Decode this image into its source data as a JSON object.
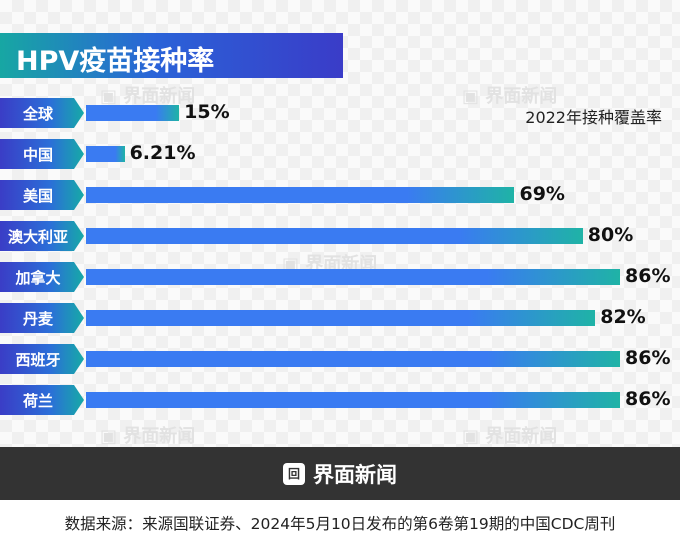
{
  "brand": "界面新闻",
  "logo_icon": "jiemian-logo-icon",
  "source": "数据来源：来源国联证券、2024年5月10日发布的第6卷第19期的中国CDC周刊",
  "chart_data": {
    "type": "bar",
    "orientation": "horizontal",
    "title": "HPV疫苗接种率",
    "subtitle": "2022年接种覆盖率",
    "categories": [
      "全球",
      "中国",
      "美国",
      "澳大利亚",
      "加拿大",
      "丹麦",
      "西班牙",
      "荷兰"
    ],
    "values": [
      15,
      6.21,
      69,
      80,
      86,
      82,
      86,
      86
    ],
    "value_labels": [
      "15%",
      "6.21%",
      "69%",
      "80%",
      "86%",
      "82%",
      "86%",
      "86%"
    ],
    "unit": "%",
    "xlim": [
      0,
      100
    ],
    "grid": false,
    "colors": {
      "bar_start": "#3a7bf2",
      "bar_end": "#1fb3a6",
      "title_bg": "#2a63d8"
    }
  }
}
